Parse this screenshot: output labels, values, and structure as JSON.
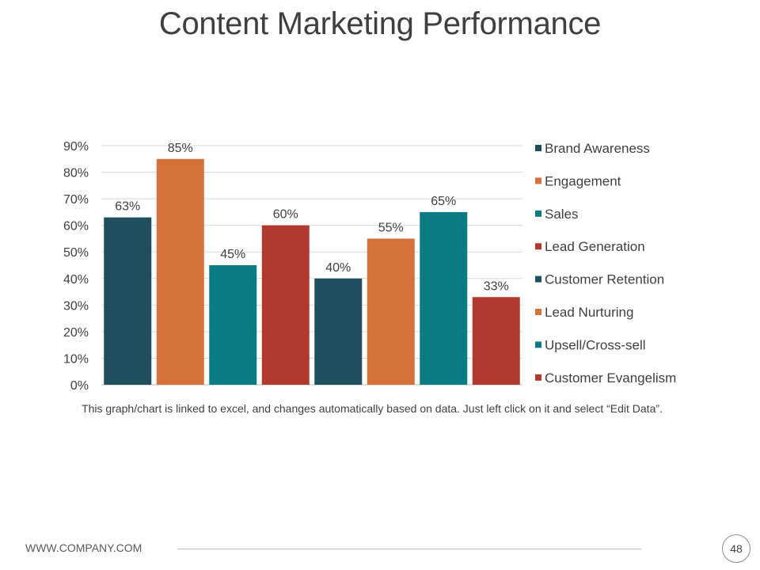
{
  "slide": {
    "title": "Content Marketing Performance",
    "note": "This graph/chart is linked to excel, and changes automatically based on data. Just left click on it and select “Edit Data”.",
    "footer_url": "WWW.COMPANY.COM",
    "page_number": "48"
  },
  "chart_data": {
    "type": "bar",
    "title": "",
    "xlabel": "",
    "ylabel": "",
    "ylim": [
      0,
      90
    ],
    "y_ticks": [
      "0%",
      "10%",
      "20%",
      "30%",
      "40%",
      "50%",
      "60%",
      "70%",
      "80%",
      "90%"
    ],
    "grid": true,
    "legend_position": "right",
    "series": [
      {
        "name": "Brand Awareness",
        "value": 63,
        "label": "63%",
        "color": "#1f4e5f"
      },
      {
        "name": "Engagement",
        "value": 85,
        "label": "85%",
        "color": "#d5713a"
      },
      {
        "name": "Sales",
        "value": 45,
        "label": "45%",
        "color": "#0c7c84"
      },
      {
        "name": "Lead Generation",
        "value": 60,
        "label": "60%",
        "color": "#b13a30"
      },
      {
        "name": "Customer Retention",
        "value": 40,
        "label": "40%",
        "color": "#1f4e5f"
      },
      {
        "name": "Lead Nurturing",
        "value": 55,
        "label": "55%",
        "color": "#d5713a"
      },
      {
        "name": "Upsell/Cross-sell",
        "value": 65,
        "label": "65%",
        "color": "#0c7c84"
      },
      {
        "name": "Customer Evangelism",
        "value": 33,
        "label": "33%",
        "color": "#b13a30"
      }
    ]
  }
}
